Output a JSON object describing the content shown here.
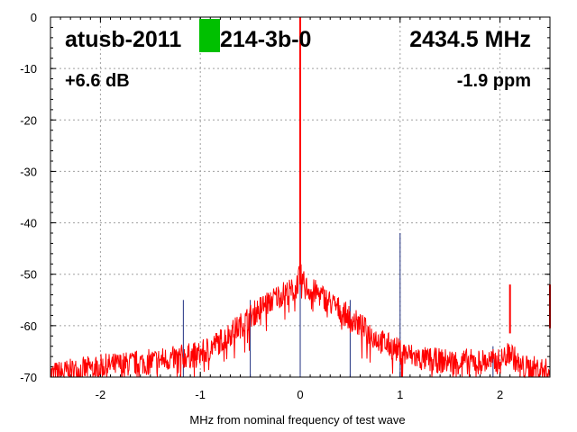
{
  "chart_data": {
    "type": "line",
    "title_left_a": "atusb-2011",
    "title_left_b": "214-3b-0",
    "title_right": "2434.5 MHz",
    "gain": "+6.6 dB",
    "ppm": "-1.9 ppm",
    "xlabel": "MHz from nominal frequency of test wave",
    "ylabel": "",
    "xlim": [
      -2.5,
      2.5
    ],
    "ylim": [
      -70,
      0
    ],
    "grid": true,
    "xticks": [
      "-2",
      "-1",
      "0",
      "1",
      "2"
    ],
    "xtick_values": [
      -2,
      -1,
      0,
      1,
      2
    ],
    "yticks": [
      "0",
      "-10",
      "-20",
      "-30",
      "-40",
      "-50",
      "-60",
      "-70"
    ],
    "ytick_values": [
      0,
      -10,
      -20,
      -30,
      -40,
      -50,
      -60,
      -70
    ],
    "series": [
      {
        "name": "spectrum",
        "color": "#ff0000",
        "envelope_x": [
          -2.5,
          -2.0,
          -1.5,
          -1.0,
          -0.8,
          -0.6,
          -0.4,
          -0.2,
          -0.05,
          0,
          0.05,
          0.2,
          0.4,
          0.6,
          0.8,
          1.0,
          1.2,
          1.5,
          2.0,
          2.1,
          2.2,
          2.4,
          2.5
        ],
        "envelope_y": [
          -69.5,
          -68,
          -67,
          -65.5,
          -63,
          -60,
          -56.5,
          -54,
          -53,
          -50,
          -52.5,
          -54,
          -57,
          -60,
          -63,
          -65,
          -66.5,
          -67,
          -67,
          -65,
          -68,
          -68.5,
          -69
        ],
        "noise_db": 2.5
      }
    ],
    "peaks": [
      {
        "x": 0,
        "y": 0,
        "color": "#ff0000"
      },
      {
        "x": 2.1,
        "y": -61.5,
        "color": "#ff0000"
      },
      {
        "x": 2.5,
        "y": -60.5,
        "color": "#ff0000"
      }
    ],
    "spurs": [
      {
        "x": -1.17,
        "y": -55,
        "color": "#203080"
      },
      {
        "x": -0.5,
        "y": -55,
        "color": "#203080"
      },
      {
        "x": 0.5,
        "y": -55,
        "color": "#203080"
      },
      {
        "x": 1.0,
        "y": -42,
        "color": "#203080"
      },
      {
        "x": 1.93,
        "y": -64,
        "color": "#203080"
      },
      {
        "x": 0,
        "y": 0,
        "color": "#203080"
      }
    ],
    "redaction_color": "#00c000"
  }
}
